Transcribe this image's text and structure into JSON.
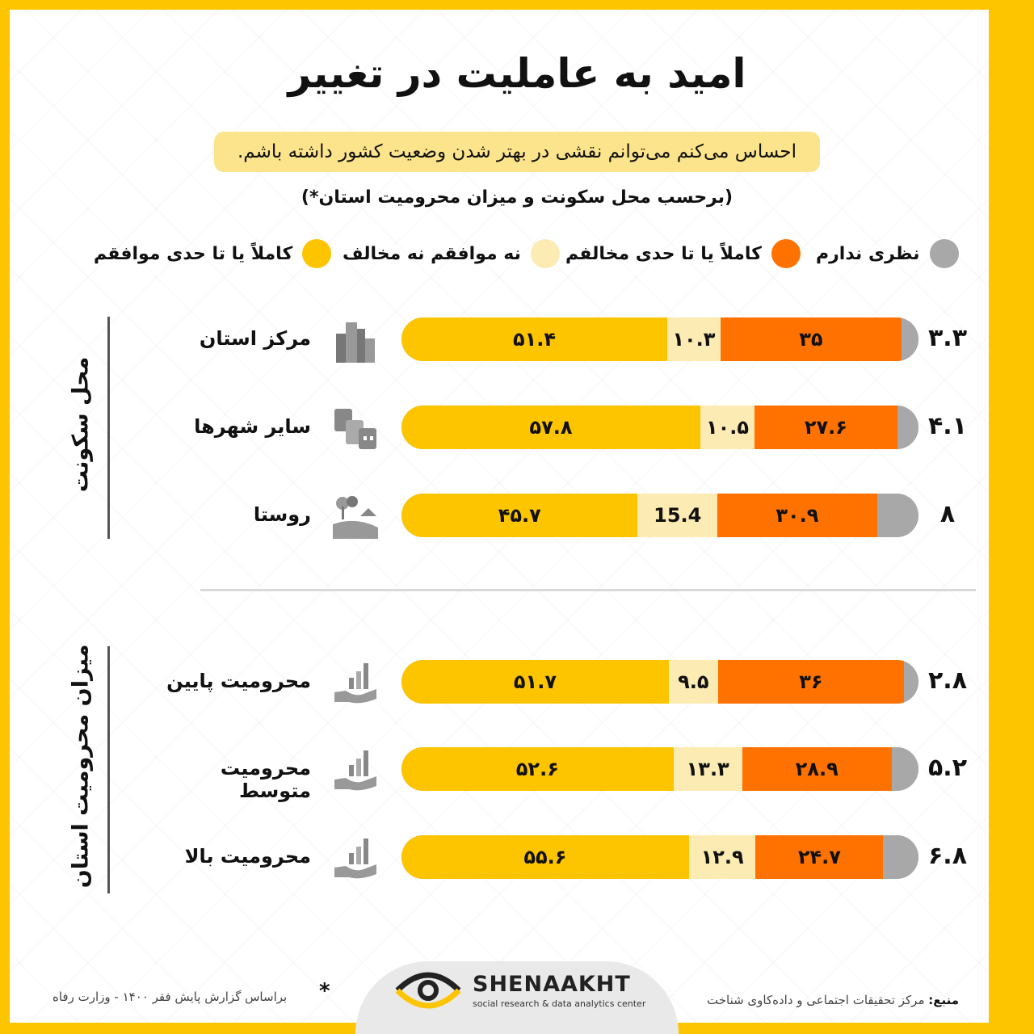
{
  "header": {
    "title": "امید به عاملیت در تغییر",
    "statement": "احساس می‌کنم می‌توانم نقشی در بهتر شدن وضعیت کشور داشته باشم.",
    "breakdown": "(برحسب محل سکونت و میزان محرومیت استان*)"
  },
  "colors": {
    "agree": "#FDC400",
    "neutral": "#FCEBB3",
    "disagree": "#FF7200",
    "no_opinion": "#A8A8A8"
  },
  "legend": {
    "no_opinion": "نظری ندارم",
    "disagree": "کاملاً یا تا حدی مخالفم",
    "neutral": "نه موافقم نه مخالف",
    "agree": "کاملاً یا تا حدی موافقم"
  },
  "groups": [
    {
      "label": "محل سکونت"
    },
    {
      "label": "میزان محرومیت استان"
    }
  ],
  "chart_data": {
    "type": "bar",
    "stacked": true,
    "orientation": "horizontal",
    "categories": [
      "مرکز استان",
      "سایر شهرها",
      "روستا",
      "محرومیت پایین",
      "محرومیت متوسط",
      "محرومیت بالا"
    ],
    "series": [
      {
        "name": "کاملاً یا تا حدی موافقم",
        "values": [
          51.4,
          57.8,
          45.7,
          51.7,
          52.6,
          55.6
        ],
        "labels": [
          "۵۱.۴",
          "۵۷.۸",
          "۴۵.۷",
          "۵۱.۷",
          "۵۲.۶",
          "۵۵.۶"
        ]
      },
      {
        "name": "نه موافقم نه مخالف",
        "values": [
          10.3,
          10.5,
          15.4,
          9.5,
          13.3,
          12.9
        ],
        "labels": [
          "۱۰.۳",
          "۱۰.۵",
          "15.4",
          "۹.۵",
          "۱۳.۳",
          "۱۲.۹"
        ]
      },
      {
        "name": "کاملاً یا تا حدی مخالفم",
        "values": [
          35,
          27.6,
          30.9,
          36,
          28.9,
          24.7
        ],
        "labels": [
          "۳۵",
          "۲۷.۶",
          "۳۰.۹",
          "۳۶",
          "۲۸.۹",
          "۲۴.۷"
        ]
      },
      {
        "name": "نظری ندارم",
        "values": [
          3.3,
          4.1,
          8,
          2.8,
          5.2,
          6.8
        ],
        "labels": [
          "۳.۳",
          "۴.۱",
          "۸",
          "۲.۸",
          "۵.۲",
          "۶.۸"
        ]
      }
    ],
    "xlim": [
      0,
      100
    ]
  },
  "rows": [
    {
      "label": "مرکز استان",
      "icon": "skyscraper-icon"
    },
    {
      "label": "سایر شهرها",
      "icon": "buildings-icon"
    },
    {
      "label": "روستا",
      "icon": "village-icon"
    },
    {
      "label": "محرومیت پایین",
      "icon": "hand-chart-icon"
    },
    {
      "label": "محرومیت متوسط",
      "icon": "hand-chart-icon"
    },
    {
      "label": "محرومیت بالا",
      "icon": "hand-chart-icon"
    }
  ],
  "footer": {
    "star": "*",
    "note": "براساس گزارش پایش فقر ۱۴۰۰ - وزارت رفاه",
    "source_label": "منبع:",
    "source_text": "مرکز تحقیقات اجتماعی و داده‌کاوی شناخت",
    "logo_name": "SHENAAKHT",
    "logo_tagline": "social research & data analytics center"
  }
}
